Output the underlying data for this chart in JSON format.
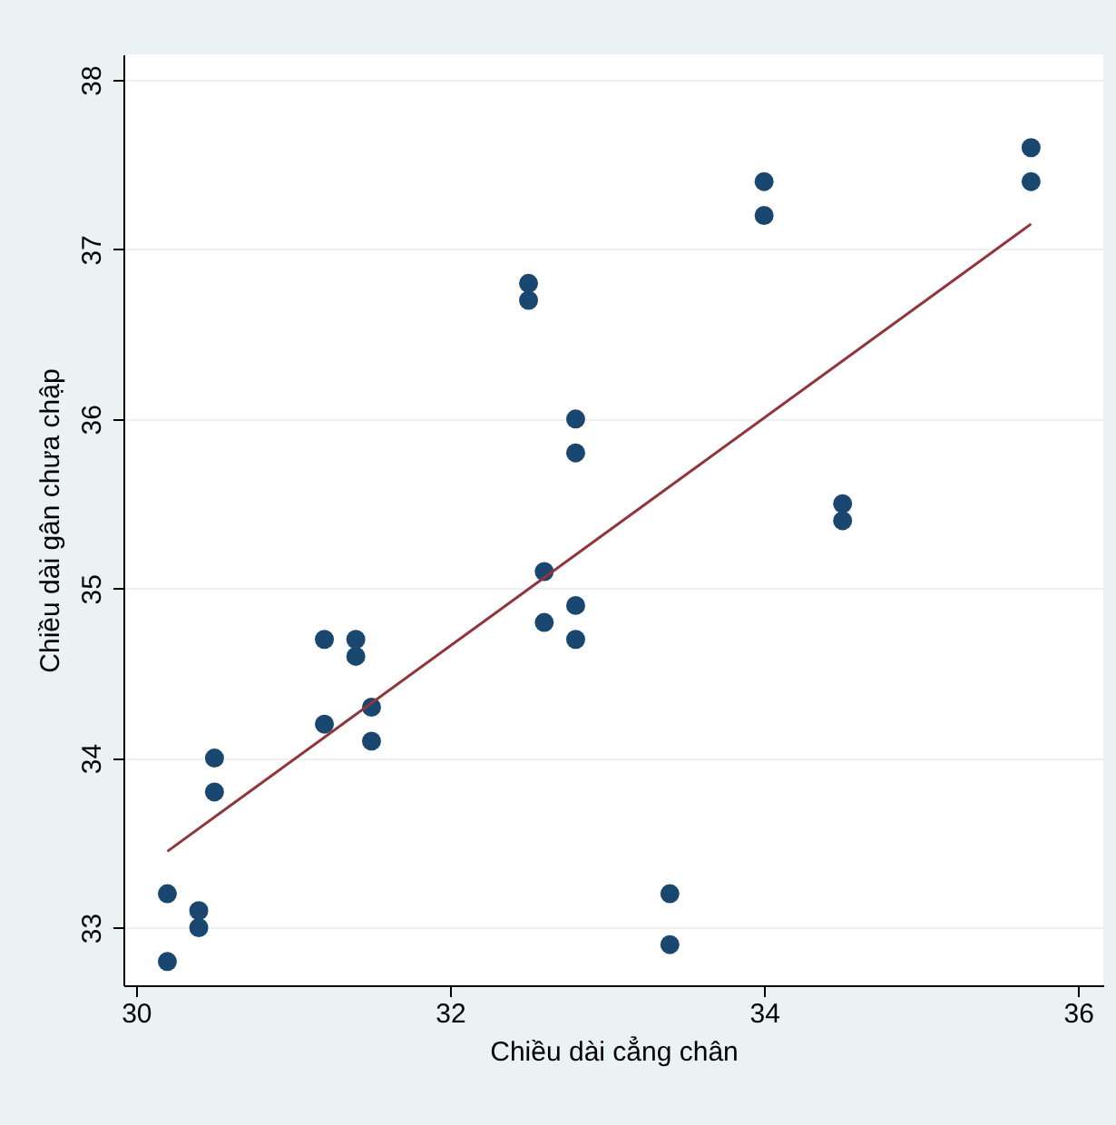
{
  "chart_data": {
    "type": "scatter",
    "xlabel": "Chiều dài cẳng chân",
    "ylabel": "Chiều dài gân chưa chập",
    "xlim": [
      29.92,
      36.16
    ],
    "ylim": [
      32.66,
      38.15
    ],
    "xticks": [
      30,
      32,
      34,
      36
    ],
    "yticks": [
      33,
      34,
      35,
      36,
      37,
      38
    ],
    "grid": "y",
    "series": [
      {
        "marker": "circle",
        "color": "#1a476f",
        "x": [
          30.2,
          30.2,
          30.4,
          30.4,
          30.5,
          30.5,
          31.2,
          31.2,
          31.4,
          31.4,
          31.5,
          31.5,
          32.5,
          32.5,
          32.6,
          32.6,
          32.8,
          32.8,
          32.8,
          32.8,
          33.4,
          33.4,
          34.0,
          34.0,
          34.5,
          34.5,
          35.7,
          35.7
        ],
        "values": [
          33.2,
          32.8,
          33.1,
          33.0,
          34.0,
          33.8,
          34.7,
          34.2,
          34.7,
          34.6,
          34.3,
          34.1,
          36.8,
          36.7,
          35.1,
          34.8,
          36.0,
          35.8,
          34.9,
          34.7,
          33.2,
          32.9,
          37.4,
          37.2,
          35.5,
          35.4,
          37.6,
          37.4
        ]
      },
      {
        "type": "line",
        "color": "#90353b",
        "x": [
          30.2,
          35.7
        ],
        "values": [
          33.45,
          37.15
        ]
      }
    ]
  }
}
